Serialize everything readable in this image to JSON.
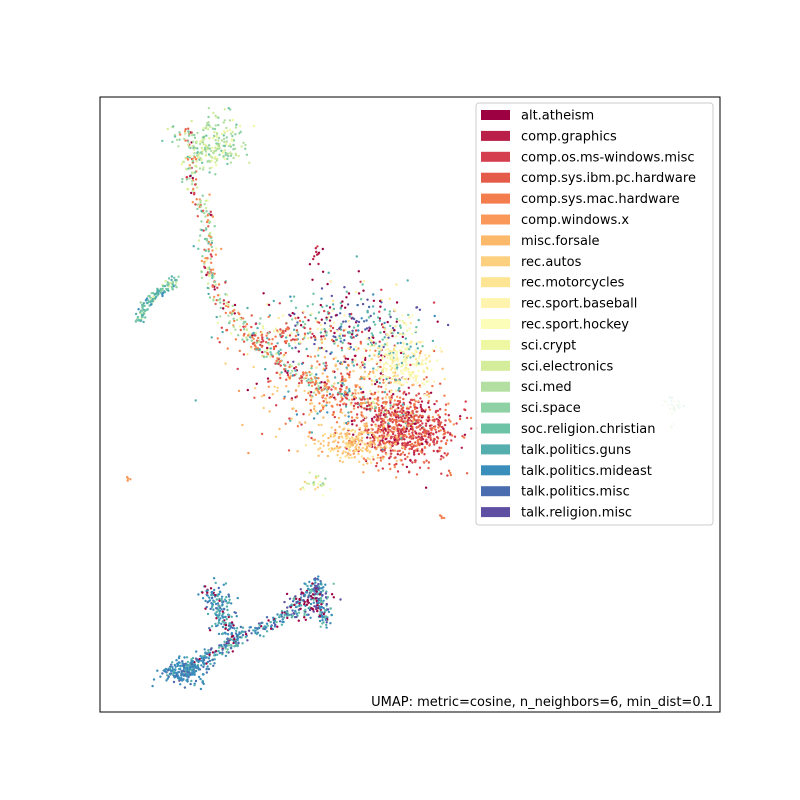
{
  "chart_data": {
    "type": "scatter",
    "title": "",
    "xlabel": "",
    "ylabel": "",
    "xlim": [
      0,
      100
    ],
    "ylim": [
      0,
      100
    ],
    "grid": false,
    "ticks": "hidden",
    "legend_placement": "top-right",
    "annotation": "UMAP: metric=cosine, n_neighbors=6, min_dist=0.1",
    "series": [
      {
        "name": "alt.atheism",
        "color": "#9e0142"
      },
      {
        "name": "comp.graphics",
        "color": "#b91f48"
      },
      {
        "name": "comp.os.ms-windows.misc",
        "color": "#d53e4f"
      },
      {
        "name": "comp.sys.ibm.pc.hardware",
        "color": "#e45c49"
      },
      {
        "name": "comp.sys.mac.hardware",
        "color": "#f47d4d"
      },
      {
        "name": "comp.windows.x",
        "color": "#f99858"
      },
      {
        "name": "misc.forsale",
        "color": "#fdb96a"
      },
      {
        "name": "rec.autos",
        "color": "#fdd080"
      },
      {
        "name": "rec.motorcycles",
        "color": "#fee593"
      },
      {
        "name": "rec.sport.baseball",
        "color": "#fff4ad"
      },
      {
        "name": "rec.sport.hockey",
        "color": "#fbfdb9"
      },
      {
        "name": "sci.crypt",
        "color": "#eef8a3"
      },
      {
        "name": "sci.electronics",
        "color": "#d3ed9b"
      },
      {
        "name": "sci.med",
        "color": "#b3e0a2"
      },
      {
        "name": "sci.space",
        "color": "#8ed1a4"
      },
      {
        "name": "soc.religion.christian",
        "color": "#6cc3a5"
      },
      {
        "name": "talk.politics.guns",
        "color": "#54aead"
      },
      {
        "name": "talk.politics.mideast",
        "color": "#3a8ebb"
      },
      {
        "name": "talk.politics.misc",
        "color": "#4a6db0"
      },
      {
        "name": "talk.religion.misc",
        "color": "#5e4fa2"
      }
    ]
  }
}
